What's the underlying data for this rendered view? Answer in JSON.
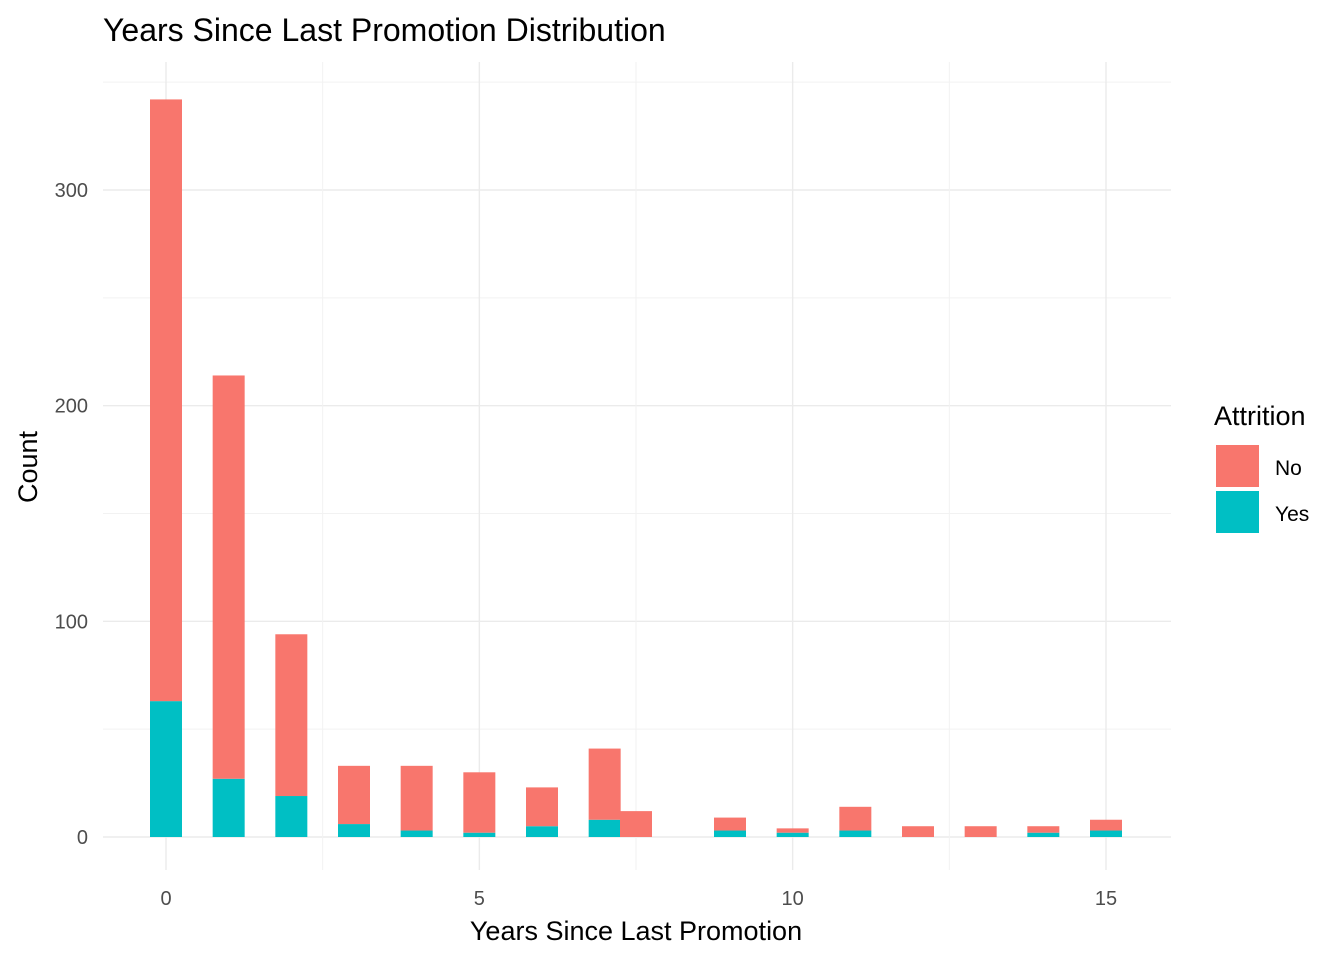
{
  "chart_data": {
    "type": "bar",
    "stacked": true,
    "title": "Years Since Last Promotion Distribution",
    "xlabel": "Years Since Last Promotion",
    "ylabel": "Count",
    "x_ticks": [
      0,
      5,
      10,
      15
    ],
    "y_ticks": [
      0,
      100,
      200,
      300
    ],
    "xlim": [
      -1,
      15.5
    ],
    "ylim": [
      -15,
      350
    ],
    "grid": true,
    "legend": {
      "title": "Attrition",
      "position": "right"
    },
    "x": [
      0,
      1,
      2,
      3,
      4,
      5,
      6,
      7,
      7.5,
      9,
      10,
      11,
      12,
      13,
      14,
      15
    ],
    "series": [
      {
        "name": "Yes",
        "color": "#00BFC4",
        "values": [
          63,
          27,
          19,
          6,
          3,
          2,
          5,
          8,
          0,
          3,
          2,
          3,
          0,
          0,
          2,
          3
        ]
      },
      {
        "name": "No",
        "color": "#F8766D",
        "values": [
          279,
          187,
          75,
          27,
          30,
          28,
          18,
          33,
          12,
          6,
          2,
          11,
          5,
          5,
          3,
          5
        ]
      }
    ]
  }
}
